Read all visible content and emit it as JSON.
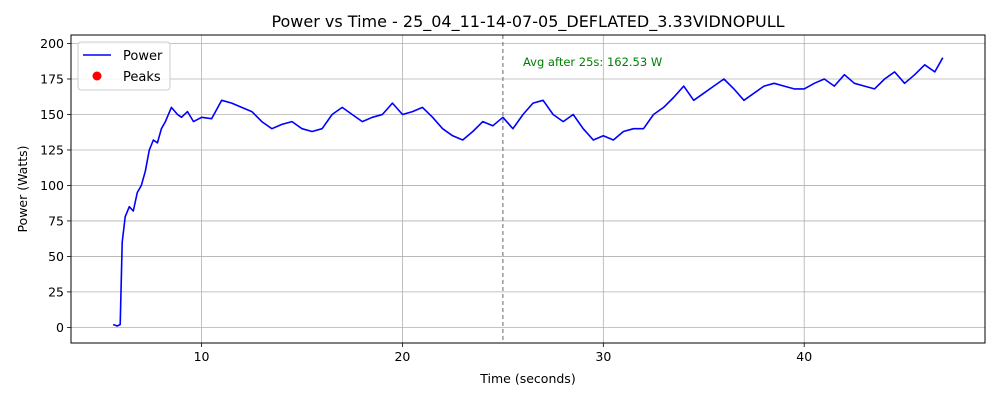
{
  "chart_data": {
    "type": "line",
    "title": "Power vs Time - 25_04_11-14-07-05_DEFLATED_3.33VIDNOPULL",
    "xlabel": "Time (seconds)",
    "ylabel": "Power (Watts)",
    "xlim": [
      3.5,
      49
    ],
    "ylim": [
      -11,
      206
    ],
    "x_ticks": [
      10,
      20,
      30,
      40
    ],
    "y_ticks": [
      0,
      25,
      50,
      75,
      100,
      125,
      150,
      175,
      200
    ],
    "grid": true,
    "legend_position": "top-left",
    "colors": {
      "power": "#0000ff",
      "peaks": "#ff0000",
      "avg_line": "#808080",
      "annotation": "#008000"
    },
    "series": [
      {
        "name": "Power",
        "kind": "line",
        "x": [
          5.6,
          5.8,
          5.95,
          6.05,
          6.2,
          6.4,
          6.6,
          6.8,
          7.0,
          7.2,
          7.4,
          7.6,
          7.8,
          8.0,
          8.2,
          8.5,
          8.8,
          9.0,
          9.3,
          9.6,
          10.0,
          10.5,
          11.0,
          11.5,
          12.0,
          12.5,
          13.0,
          13.5,
          14.0,
          14.5,
          15.0,
          15.5,
          16.0,
          16.5,
          17.0,
          17.5,
          18.0,
          18.5,
          19.0,
          19.5,
          20.0,
          20.5,
          21.0,
          21.5,
          22.0,
          22.5,
          23.0,
          23.5,
          24.0,
          24.5,
          25.0,
          25.5,
          26.0,
          26.5,
          27.0,
          27.5,
          28.0,
          28.5,
          29.0,
          29.5,
          30.0,
          30.5,
          31.0,
          31.5,
          32.0,
          32.5,
          33.0,
          33.5,
          34.0,
          34.5,
          35.0,
          35.5,
          36.0,
          36.5,
          37.0,
          37.5,
          38.0,
          38.5,
          39.0,
          39.5,
          40.0,
          40.5,
          41.0,
          41.5,
          42.0,
          42.5,
          43.0,
          43.5,
          44.0,
          44.5,
          45.0,
          45.5,
          46.0,
          46.5,
          46.9
        ],
        "y": [
          2,
          1,
          2,
          60,
          78,
          85,
          82,
          95,
          100,
          110,
          125,
          132,
          130,
          140,
          145,
          155,
          150,
          148,
          152,
          145,
          148,
          147,
          160,
          158,
          155,
          152,
          145,
          140,
          143,
          145,
          140,
          138,
          140,
          150,
          155,
          150,
          145,
          148,
          150,
          158,
          150,
          152,
          155,
          148,
          140,
          135,
          132,
          138,
          145,
          142,
          148,
          140,
          150,
          158,
          160,
          150,
          145,
          150,
          140,
          132,
          135,
          132,
          138,
          140,
          140,
          150,
          155,
          162,
          170,
          160,
          165,
          170,
          175,
          168,
          160,
          165,
          170,
          172,
          170,
          168,
          168,
          172,
          175,
          170,
          178,
          172,
          170,
          168,
          175,
          180,
          172,
          178,
          185,
          180,
          190
        ]
      },
      {
        "name": "Peaks",
        "kind": "scatter",
        "x": [],
        "y": []
      }
    ],
    "reference_line": {
      "x": 25
    },
    "annotation": {
      "x": 26,
      "y": 187,
      "text": "Avg after 25s: 162.53 W"
    }
  }
}
